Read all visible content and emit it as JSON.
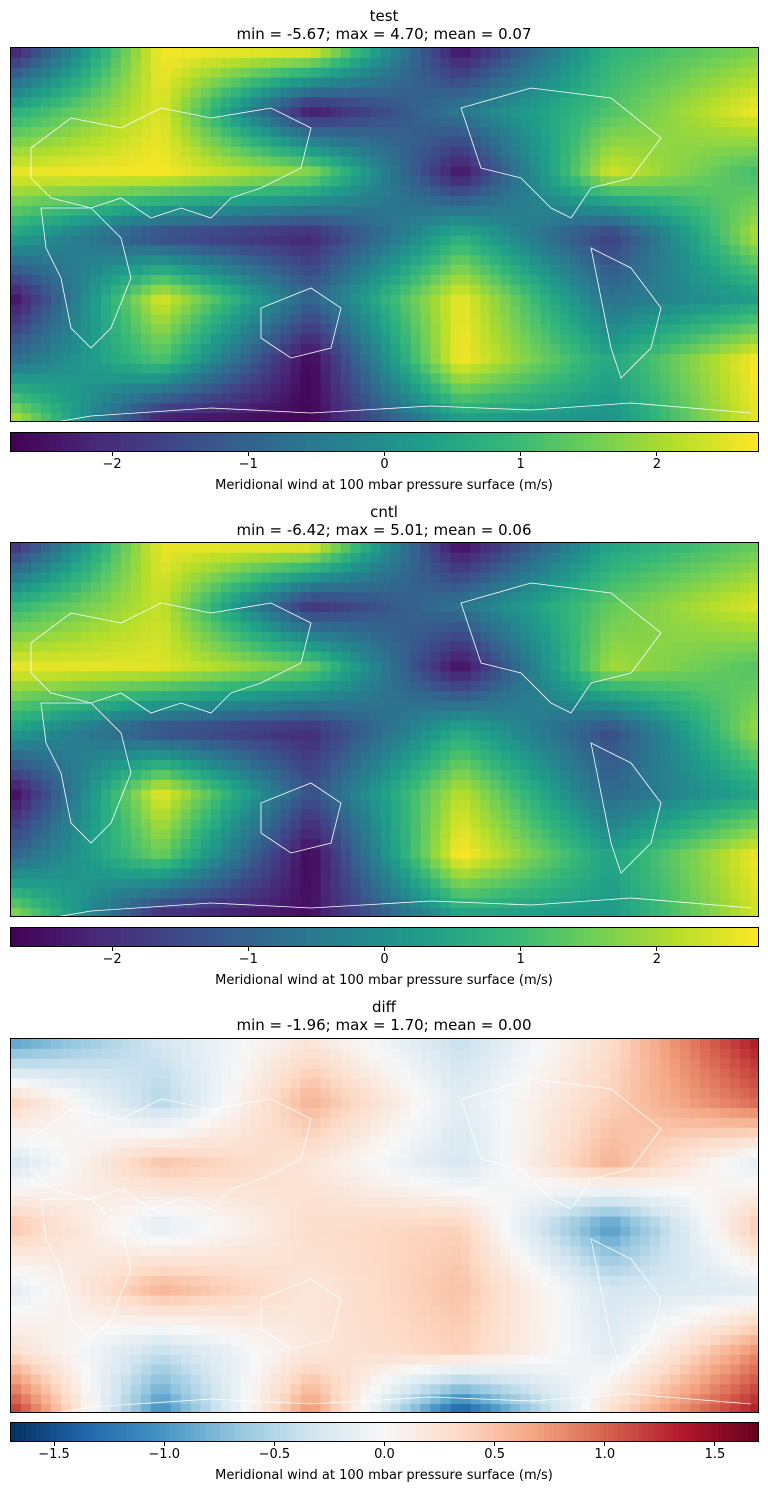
{
  "panels": [
    {
      "title": "test",
      "stats": "min = -5.67; max = 4.70; mean = 0.07",
      "colormap": "viridis",
      "colorbar": {
        "range": [
          -2.75,
          2.75
        ],
        "ticks": [
          -2,
          -1,
          0,
          1,
          2
        ],
        "tick_labels": [
          "−2",
          "−1",
          "0",
          "1",
          "2"
        ],
        "label": "Meridional wind at 100 mbar pressure surface (m/s)"
      },
      "field": [
        [
          -2.5,
          2.7,
          2.8,
          -2.6,
          0.8,
          1.6
        ],
        [
          0.6,
          2.5,
          -2.4,
          -0.5,
          1.2,
          2.7
        ],
        [
          2.6,
          2.7,
          1.8,
          -2.5,
          2.4,
          1.0
        ],
        [
          0.5,
          -1.6,
          -2.2,
          0.7,
          -1.8,
          2.2
        ],
        [
          -2.6,
          2.5,
          -1.0,
          2.6,
          -0.7,
          0.3
        ],
        [
          -0.8,
          1.2,
          -2.7,
          2.7,
          0.5,
          2.8
        ],
        [
          2.4,
          -2.5,
          -2.7,
          0.2,
          0.0,
          2.6
        ]
      ]
    },
    {
      "title": "cntl",
      "stats": "min = -6.42; max = 5.01; mean = 0.06",
      "colormap": "viridis",
      "colorbar": {
        "range": [
          -2.75,
          2.75
        ],
        "ticks": [
          -2,
          -1,
          0,
          1,
          2
        ],
        "tick_labels": [
          "−2",
          "−1",
          "0",
          "1",
          "2"
        ],
        "label": "Meridional wind at 100 mbar pressure surface (m/s)"
      },
      "field": [
        [
          -2.2,
          2.6,
          2.8,
          -2.7,
          0.4,
          1.4
        ],
        [
          0.8,
          2.3,
          -2.0,
          -0.6,
          1.4,
          2.5
        ],
        [
          2.6,
          2.5,
          1.5,
          -2.6,
          2.0,
          1.2
        ],
        [
          0.4,
          -1.5,
          -2.1,
          0.6,
          -1.5,
          2.0
        ],
        [
          -2.7,
          2.6,
          -1.4,
          2.2,
          -0.9,
          0.5
        ],
        [
          -1.0,
          1.5,
          -2.7,
          2.8,
          0.4,
          2.7
        ],
        [
          2.0,
          -2.2,
          -2.5,
          0.3,
          0.2,
          2.4
        ]
      ]
    },
    {
      "title": "diff",
      "stats": "min = -1.96; max = 1.70; mean = 0.00",
      "colormap": "RdBu_r",
      "colorbar": {
        "range": [
          -1.7,
          1.7
        ],
        "ticks": [
          -1.5,
          -1.0,
          -0.5,
          0.0,
          0.5,
          1.0,
          1.5
        ],
        "tick_labels": [
          "−1.5",
          "−1.0",
          "−0.5",
          "0.0",
          "0.5",
          "1.0",
          "1.5"
        ],
        "label": "Meridional wind at 100 mbar pressure surface (m/s)"
      },
      "field": [
        [
          -1.0,
          -0.3,
          0.2,
          -0.4,
          0.3,
          1.4
        ],
        [
          0.4,
          -0.5,
          0.6,
          -0.2,
          0.4,
          1.0
        ],
        [
          -0.3,
          0.5,
          0.2,
          -0.3,
          0.6,
          -0.2
        ],
        [
          0.5,
          -0.2,
          0.3,
          0.4,
          -1.0,
          0.5
        ],
        [
          -0.2,
          0.6,
          0.2,
          0.5,
          -0.3,
          -0.2
        ],
        [
          0.3,
          -0.4,
          0.2,
          0.4,
          -0.2,
          0.8
        ],
        [
          1.3,
          -1.1,
          0.8,
          -1.5,
          0.3,
          1.4
        ]
      ]
    }
  ]
}
